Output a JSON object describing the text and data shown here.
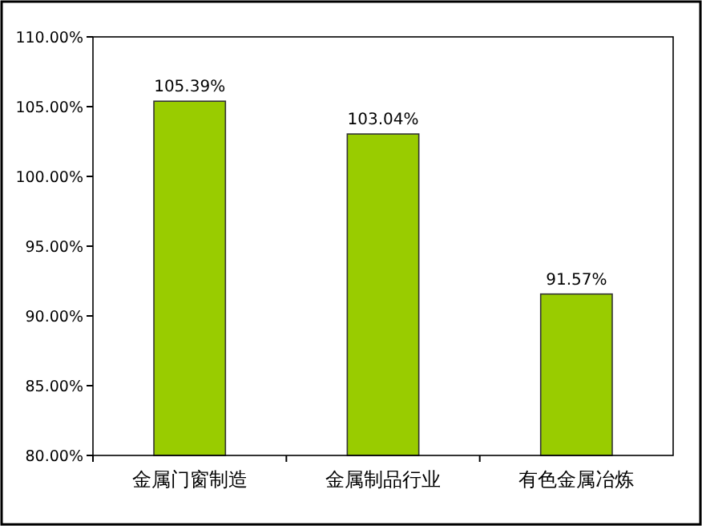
{
  "chart_data": {
    "type": "bar",
    "categories": [
      "金属门窗制造",
      "金属制品行业",
      "有色金属冶炼"
    ],
    "values": [
      105.39,
      103.04,
      91.57
    ],
    "color": "#99cc00",
    "value_labels": [
      "105.39%",
      "103.04%",
      "91.57%"
    ],
    "ylim": [
      80,
      110
    ],
    "yticks": [
      {
        "value": 80,
        "label": "80.00%"
      },
      {
        "value": 85,
        "label": "85.00%"
      },
      {
        "value": 90,
        "label": "90.00%"
      },
      {
        "value": 95,
        "label": "95.00%"
      },
      {
        "value": 100,
        "label": "100.00%"
      },
      {
        "value": 105,
        "label": "105.00%"
      },
      {
        "value": 110,
        "label": "110.00%"
      }
    ],
    "grid": false
  }
}
